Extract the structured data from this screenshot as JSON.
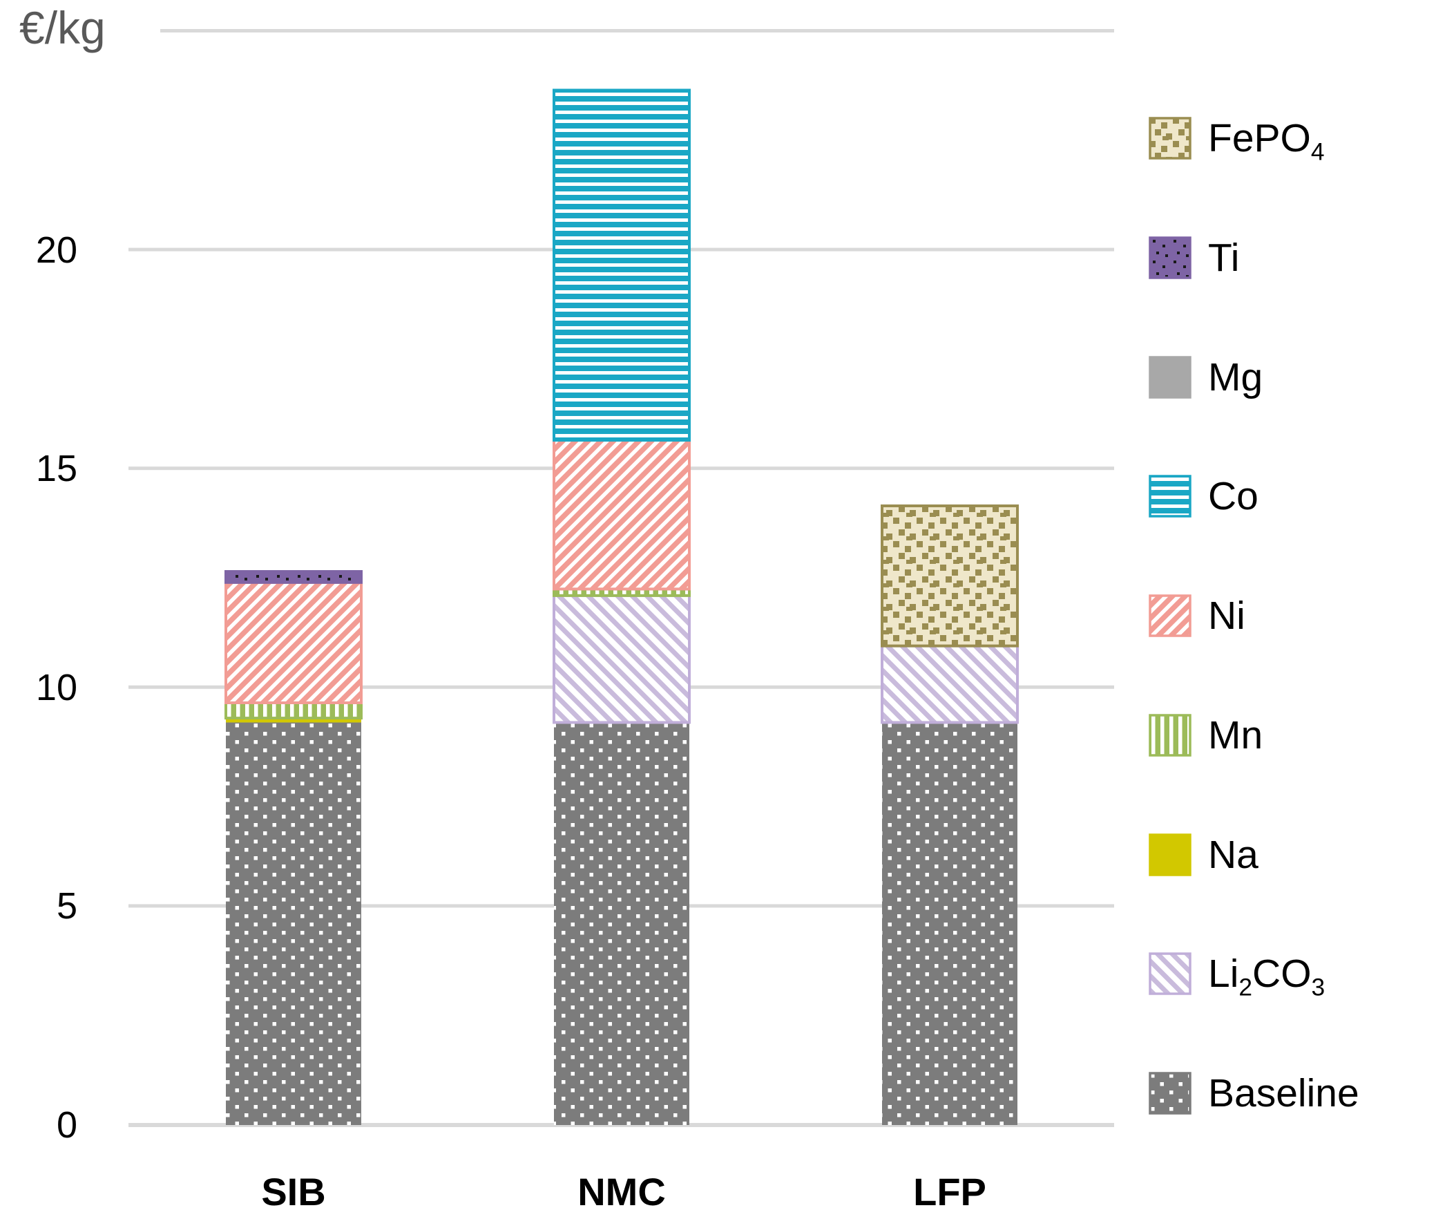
{
  "chart_data": {
    "type": "bar",
    "stacked": true,
    "title": "",
    "xlabel": "",
    "ylabel": "€/kg",
    "categories": [
      "SIB",
      "NMC",
      "LFP"
    ],
    "y_axis": {
      "unit": "€/kg",
      "ticks": [
        0,
        5,
        10,
        15,
        20
      ],
      "range": [
        0,
        25
      ],
      "grid": true
    },
    "legend_position": "right",
    "series": [
      {
        "key": "baseline",
        "label": "Baseline",
        "label_parts": [
          {
            "t": "Baseline"
          }
        ],
        "pattern": "dots-offset",
        "color": "#7C7C7C",
        "pattern_fg": "#FFFFFF",
        "values": [
          9.2,
          9.2,
          9.2
        ]
      },
      {
        "key": "li2co3",
        "label": "Li2CO3",
        "label_parts": [
          {
            "t": "Li"
          },
          {
            "t": "2",
            "sub": true
          },
          {
            "t": "CO"
          },
          {
            "t": "3",
            "sub": true
          }
        ],
        "pattern": "diag-up",
        "color": "#C9BBDC",
        "border": "#C0AED9",
        "pattern_bg": "#FFFFFF",
        "values": [
          0,
          2.9,
          1.75
        ]
      },
      {
        "key": "na",
        "label": "Na",
        "label_parts": [
          {
            "t": "Na"
          }
        ],
        "pattern": "solid",
        "color": "#D2C800",
        "values": [
          0.1,
          0,
          0
        ]
      },
      {
        "key": "mn",
        "label": "Mn",
        "label_parts": [
          {
            "t": "Mn"
          }
        ],
        "pattern": "vstripe",
        "color": "#9CBB59",
        "pattern_fg": "#FFFFFF",
        "values": [
          0.35,
          0.15,
          0
        ]
      },
      {
        "key": "ni",
        "label": "Ni",
        "label_parts": [
          {
            "t": "Ni"
          }
        ],
        "pattern": "diag-down",
        "color": "#F29C94",
        "pattern_fg": "#FFFFFF",
        "values": [
          2.75,
          3.4,
          0
        ]
      },
      {
        "key": "co",
        "label": "Co",
        "label_parts": [
          {
            "t": "Co"
          }
        ],
        "pattern": "hstripe",
        "color": "#1AA7C5",
        "pattern_fg": "#FFFFFF",
        "values": [
          0,
          8.0,
          0
        ]
      },
      {
        "key": "mg",
        "label": "Mg",
        "label_parts": [
          {
            "t": "Mg"
          }
        ],
        "pattern": "solid",
        "color": "#A8A8A8",
        "values": [
          0,
          0,
          0
        ]
      },
      {
        "key": "ti",
        "label": "Ti",
        "label_parts": [
          {
            "t": "Ti"
          }
        ],
        "pattern": "dots-sparse",
        "color": "#7E64A5",
        "pattern_fg": "#1A1A1A",
        "values": [
          0.25,
          0,
          0
        ]
      },
      {
        "key": "fepo4",
        "label": "FePO4",
        "label_parts": [
          {
            "t": "FePO"
          },
          {
            "t": "4",
            "sub": true
          }
        ],
        "pattern": "confetti",
        "color": "#9A8D51",
        "pattern_bg": "#EFE7CA",
        "values": [
          0,
          0,
          3.2
        ]
      }
    ],
    "totals": {
      "SIB": 12.65,
      "NMC": 23.65,
      "LFP": 14.15
    },
    "legend_order": [
      "fepo4",
      "ti",
      "mg",
      "co",
      "ni",
      "mn",
      "na",
      "li2co3",
      "baseline"
    ],
    "colors": {
      "gridline": "#D9D9D9",
      "axis_line": "#D6D6D6",
      "unit_label": "#595959",
      "tick_label": "#000000",
      "category_label": "#000000",
      "legend_label": "#000000"
    }
  }
}
